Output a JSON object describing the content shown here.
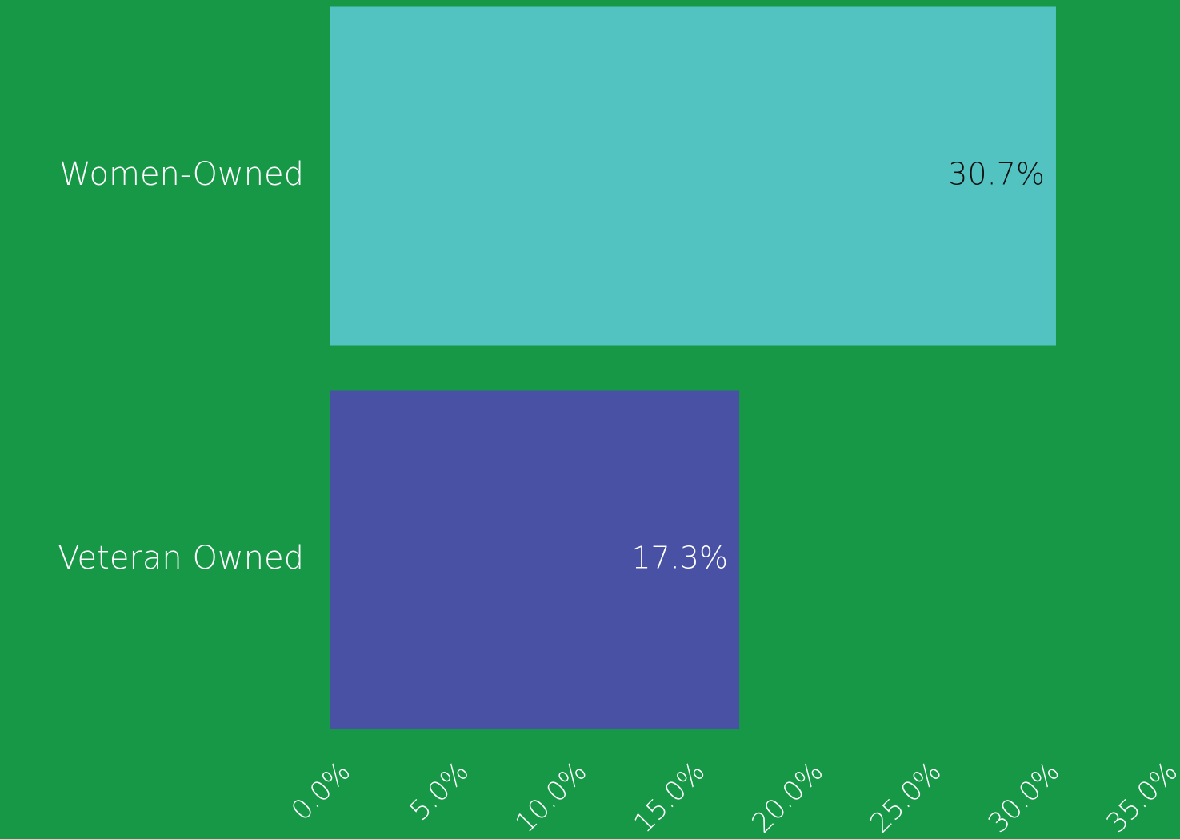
{
  "chart_data": {
    "type": "hbar",
    "categories": [
      "Women-Owned",
      "Veteran Owned"
    ],
    "values": [
      30.7,
      17.3
    ],
    "value_labels": [
      "30.7%",
      "17.3%"
    ],
    "colors": [
      "#53c3c1",
      "#4851a3"
    ],
    "background": "#169846",
    "xlim": [
      0,
      35
    ],
    "xticks": [
      {
        "value": 0,
        "label": "0.0%"
      },
      {
        "value": 5,
        "label": "5.0%"
      },
      {
        "value": 10,
        "label": "10.0%"
      },
      {
        "value": 15,
        "label": "15.0%"
      },
      {
        "value": 20,
        "label": "20.0%"
      },
      {
        "value": 25,
        "label": "25.0%"
      },
      {
        "value": 30,
        "label": "30.0%"
      },
      {
        "value": 35,
        "label": "35.0%"
      }
    ],
    "grid": false
  }
}
